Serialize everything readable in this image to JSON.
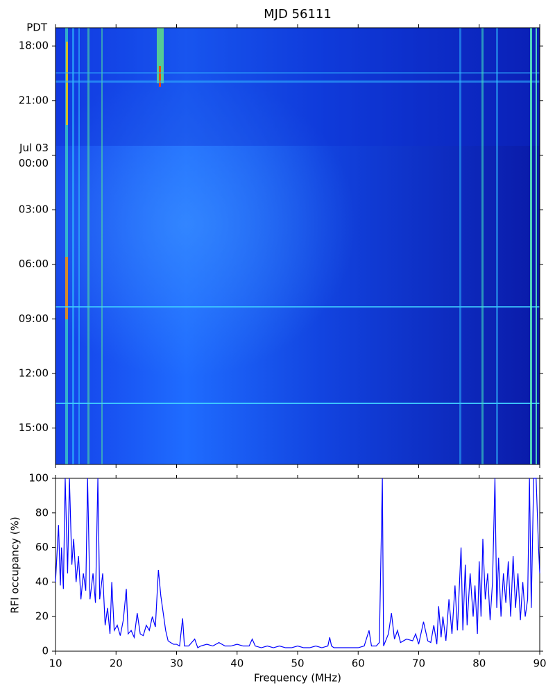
{
  "chart_data": [
    {
      "type": "heatmap",
      "title": "MJD 56111",
      "ylabel": "PDT",
      "xlim": [
        10,
        90
      ],
      "xticks": [
        10,
        20,
        30,
        40,
        50,
        60,
        70,
        80,
        90
      ],
      "ylim": [
        17,
        41
      ],
      "yticks": [
        {
          "value": 18,
          "label": "18:00"
        },
        {
          "value": 21,
          "label": "21:00"
        },
        {
          "value": 24,
          "label": "00:00",
          "date": "Jul 03"
        },
        {
          "value": 27,
          "label": "03:00"
        },
        {
          "value": 30,
          "label": "06:00"
        },
        {
          "value": 33,
          "label": "09:00"
        },
        {
          "value": 36,
          "label": "12:00"
        },
        {
          "value": 39,
          "label": "15:00"
        }
      ]
    },
    {
      "type": "line",
      "xlabel": "Frequency (MHz)",
      "ylabel": "RFI occupancy (%)",
      "color": "#0000ff",
      "xlim": [
        10,
        90
      ],
      "xticks": [
        10,
        20,
        30,
        40,
        50,
        60,
        70,
        80,
        90
      ],
      "ylim": [
        0,
        100
      ],
      "yticks": [
        0,
        20,
        40,
        60,
        80,
        100
      ],
      "x": [
        10,
        10.5,
        10.8,
        11,
        11.3,
        11.6,
        12,
        12.3,
        12.7,
        13,
        13.4,
        13.8,
        14.2,
        14.6,
        15,
        15.3,
        15.7,
        16.2,
        16.6,
        17,
        17.3,
        17.8,
        18.2,
        18.6,
        19,
        19.3,
        19.7,
        20.2,
        20.7,
        21.2,
        21.7,
        22,
        22.5,
        23,
        23.5,
        24,
        24.5,
        25,
        25.5,
        26,
        26.5,
        27,
        27.4,
        27.8,
        28.2,
        28.6,
        29,
        29.5,
        30,
        30.5,
        31,
        31.3,
        32,
        33,
        33.5,
        34,
        35,
        36,
        37,
        38,
        39,
        40,
        41,
        42,
        42.5,
        43,
        44,
        45,
        46,
        47,
        48,
        49,
        50,
        51,
        52,
        53,
        54,
        55,
        55.3,
        55.6,
        56,
        57,
        58,
        59,
        60,
        61,
        61.8,
        62.2,
        63,
        63.5,
        64,
        64.2,
        65,
        65.5,
        66,
        66.5,
        67,
        68,
        69,
        69.5,
        70,
        70.8,
        71.5,
        72,
        72.5,
        73,
        73.3,
        73.7,
        74,
        74.5,
        75,
        75.5,
        76,
        76.4,
        77,
        77.3,
        77.7,
        78,
        78.5,
        79,
        79.3,
        79.7,
        80,
        80.3,
        80.6,
        81,
        81.4,
        81.8,
        82.2,
        82.6,
        82.9,
        83.2,
        83.6,
        84,
        84.4,
        84.8,
        85.2,
        85.6,
        86,
        86.4,
        86.8,
        87.2,
        87.6,
        88,
        88.3,
        88.6,
        89,
        89.4,
        89.8,
        90
      ],
      "values": [
        40,
        73,
        38,
        60,
        36,
        100,
        45,
        100,
        50,
        65,
        40,
        55,
        30,
        45,
        35,
        100,
        30,
        45,
        28,
        100,
        30,
        45,
        15,
        25,
        10,
        40,
        12,
        15,
        9,
        18,
        36,
        10,
        12,
        8,
        22,
        10,
        9,
        15,
        12,
        20,
        14,
        47,
        32,
        22,
        12,
        6,
        5,
        4,
        4,
        3,
        19,
        3,
        3,
        7,
        2,
        3,
        4,
        3,
        5,
        3,
        3,
        4,
        3,
        3,
        7,
        3,
        2,
        3,
        2,
        3,
        2,
        2,
        3,
        2,
        2,
        3,
        2,
        3,
        8,
        3,
        2,
        2,
        2,
        2,
        2,
        3,
        12,
        3,
        3,
        5,
        100,
        3,
        10,
        22,
        7,
        12,
        5,
        7,
        6,
        10,
        4,
        17,
        6,
        5,
        15,
        4,
        26,
        8,
        20,
        6,
        30,
        10,
        38,
        12,
        60,
        12,
        50,
        15,
        45,
        20,
        38,
        10,
        52,
        20,
        65,
        30,
        45,
        18,
        40,
        100,
        25,
        54,
        20,
        45,
        28,
        52,
        20,
        55,
        25,
        45,
        18,
        40,
        20,
        30,
        100,
        25,
        100,
        100,
        60,
        45
      ]
    }
  ]
}
